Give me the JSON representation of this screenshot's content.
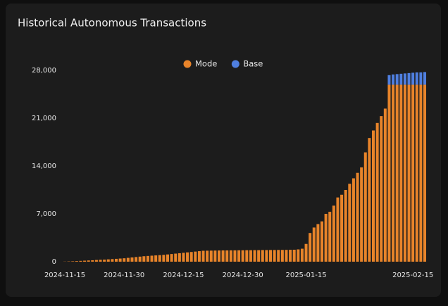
{
  "chart_data": {
    "type": "bar",
    "stacked": true,
    "title": "Historical Autonomous Transactions",
    "categories": [
      "2024-11-15",
      null,
      null,
      null,
      null,
      null,
      null,
      null,
      null,
      null,
      null,
      null,
      null,
      null,
      null,
      "2024-11-30",
      null,
      null,
      null,
      null,
      null,
      null,
      null,
      null,
      null,
      null,
      null,
      null,
      null,
      null,
      "2024-12-15",
      null,
      null,
      null,
      null,
      null,
      null,
      null,
      null,
      null,
      null,
      null,
      null,
      null,
      null,
      "2024-12-30",
      null,
      null,
      null,
      null,
      null,
      null,
      null,
      null,
      null,
      null,
      null,
      null,
      null,
      null,
      null,
      "2025-01-15",
      null,
      null,
      null,
      null,
      null,
      null,
      null,
      null,
      null,
      null,
      null,
      null,
      null,
      null,
      null,
      null,
      null,
      null,
      null,
      null,
      null,
      null,
      null,
      null,
      null,
      null,
      "2025-02-15",
      null,
      null,
      null
    ],
    "series": [
      {
        "name": "Mode",
        "color": "#e8842a",
        "values": [
          20,
          40,
          60,
          90,
          120,
          150,
          180,
          210,
          250,
          280,
          300,
          340,
          380,
          420,
          460,
          500,
          560,
          620,
          680,
          740,
          800,
          840,
          880,
          920,
          960,
          1000,
          1060,
          1120,
          1180,
          1240,
          1300,
          1360,
          1420,
          1480,
          1540,
          1600,
          1610,
          1620,
          1630,
          1640,
          1650,
          1650,
          1660,
          1660,
          1670,
          1670,
          1680,
          1680,
          1690,
          1690,
          1700,
          1700,
          1710,
          1710,
          1720,
          1720,
          1730,
          1740,
          1750,
          1800,
          1900,
          2600,
          4200,
          5000,
          5500,
          5900,
          7000,
          7300,
          8200,
          9400,
          9800,
          10500,
          11400,
          12200,
          13000,
          13800,
          16000,
          18100,
          19200,
          20300,
          21300,
          22400,
          25900,
          25900,
          25900,
          25900,
          25900,
          25900,
          25900,
          25900,
          25900,
          25900
        ]
      },
      {
        "name": "Base",
        "color": "#4f7fe0",
        "values": [
          0,
          0,
          0,
          0,
          0,
          0,
          0,
          0,
          0,
          0,
          0,
          0,
          0,
          0,
          0,
          0,
          0,
          0,
          0,
          0,
          0,
          0,
          0,
          0,
          0,
          0,
          0,
          0,
          0,
          0,
          0,
          0,
          0,
          0,
          0,
          0,
          0,
          0,
          0,
          0,
          0,
          0,
          0,
          0,
          0,
          0,
          0,
          0,
          0,
          0,
          0,
          0,
          0,
          0,
          0,
          0,
          0,
          0,
          0,
          0,
          0,
          0,
          0,
          0,
          0,
          0,
          0,
          0,
          0,
          0,
          0,
          0,
          0,
          0,
          0,
          0,
          0,
          0,
          0,
          0,
          0,
          0,
          1400,
          1500,
          1550,
          1600,
          1650,
          1700,
          1750,
          1800,
          1800,
          1850
        ]
      }
    ],
    "ylim": [
      0,
      28000
    ],
    "yticks": [
      0,
      {
        "value": 7000,
        "label": "7,000"
      },
      {
        "value": 14000,
        "label": "14,000"
      },
      {
        "value": 21000,
        "label": "21,000"
      },
      {
        "value": 28000,
        "label": "28,000"
      }
    ],
    "legend": "top"
  }
}
